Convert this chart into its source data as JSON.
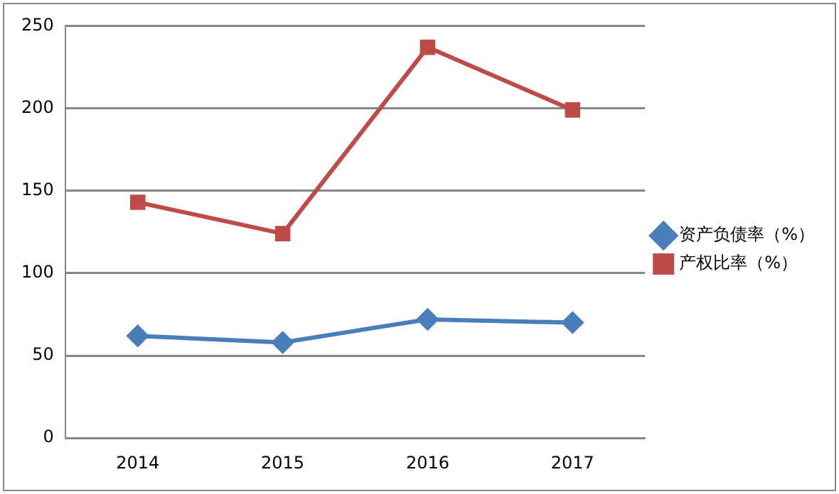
{
  "chart_data": {
    "type": "line",
    "categories": [
      "2014",
      "2015",
      "2016",
      "2017"
    ],
    "series": [
      {
        "name": "资产负债率（%）",
        "color": "#4a7ebb",
        "marker": "diamond",
        "values": [
          62,
          58,
          72,
          70
        ]
      },
      {
        "name": "产权比率（%）",
        "color": "#be4b48",
        "marker": "square",
        "values": [
          143,
          124,
          237,
          199
        ]
      }
    ],
    "ylim": [
      0,
      250
    ],
    "yticks": [
      0,
      50,
      100,
      150,
      200,
      250
    ],
    "grid": "y",
    "legend": "right"
  }
}
